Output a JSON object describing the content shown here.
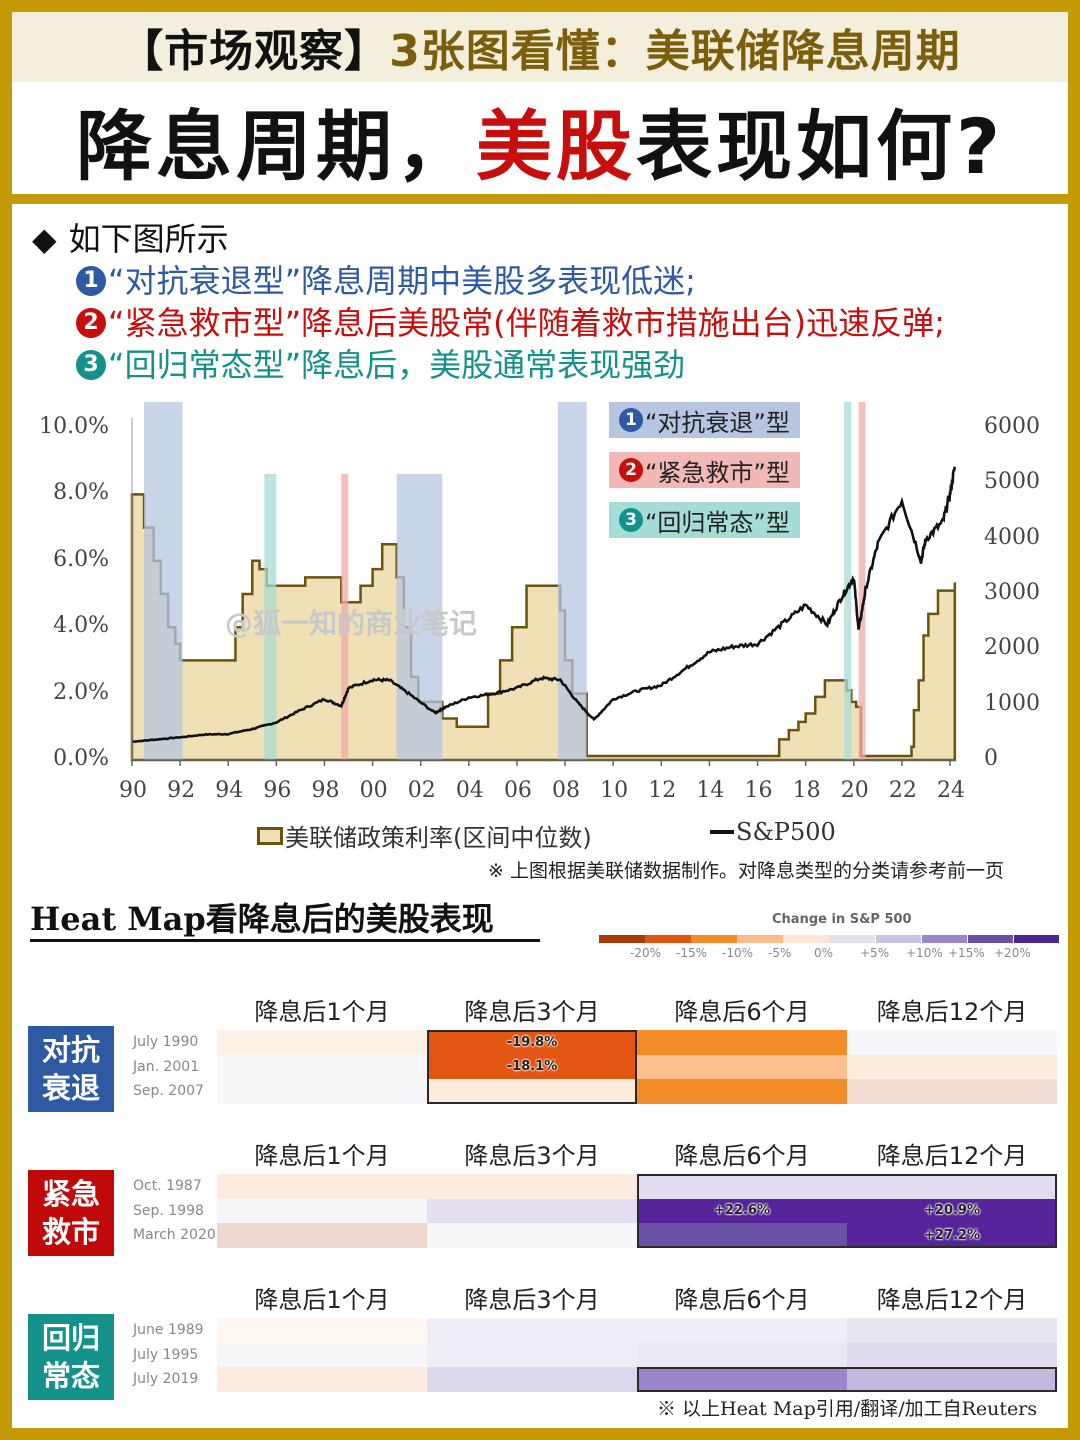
{
  "header": {
    "tag": "【市场观察】",
    "subtitle": "3张图看懂：美联储降息周期",
    "headline_a": "降息周期，",
    "headline_red": "美股",
    "headline_b": "表现如何?"
  },
  "intro": {
    "lead_bullet": "◆",
    "lead": "如下图所示",
    "items": [
      {
        "num": "1",
        "text": "“对抗衰退型”降息周期中美股多表现低迷;",
        "color": "#2d5aa3"
      },
      {
        "num": "2",
        "text": "“紧急救市型”降息后美股常(伴随着救市措施出台)迅速反弹;",
        "color": "#c80d0d"
      },
      {
        "num": "3",
        "text": "“回归常态型”降息后，美股通常表现强劲",
        "color": "#13918a"
      }
    ]
  },
  "chart_data": [
    {
      "type": "area+line",
      "title": "",
      "watermark": "@狐一知的商业笔记",
      "xlabel": "",
      "ylabel_left": "美联储政策利率",
      "ylabel_right": "S&P500",
      "x_ticks": [
        "90",
        "92",
        "94",
        "96",
        "98",
        "00",
        "02",
        "04",
        "06",
        "08",
        "10",
        "12",
        "14",
        "16",
        "18",
        "20",
        "22",
        "24"
      ],
      "y_left_ticks": [
        "0.0%",
        "2.0%",
        "4.0%",
        "6.0%",
        "8.0%",
        "10.0%"
      ],
      "y_left_range": [
        0,
        10
      ],
      "y_right_ticks": [
        "0",
        "1000",
        "2000",
        "3000",
        "4000",
        "5000",
        "6000"
      ],
      "y_right_range": [
        0,
        6000
      ],
      "legend": [
        "美联储政策利率(区间中位数)",
        "S&P500"
      ],
      "series": [
        {
          "name": "美联储政策利率(区间中位数)",
          "style": "step-area",
          "x": [
            1990.0,
            1990.5,
            1990.9,
            1991.2,
            1991.5,
            1991.8,
            1992.0,
            1992.5,
            1993.0,
            1994.0,
            1994.3,
            1994.6,
            1995.0,
            1995.3,
            1995.6,
            1996.0,
            1997.2,
            1998.0,
            1998.7,
            1999.0,
            1999.5,
            2000.0,
            2000.4,
            2001.0,
            2001.3,
            2001.6,
            2001.9,
            2002.2,
            2002.9,
            2003.5,
            2004.4,
            2004.8,
            2005.3,
            2005.8,
            2006.4,
            2007.5,
            2007.8,
            2008.0,
            2008.3,
            2008.9,
            2015.9,
            2016.9,
            2017.3,
            2017.7,
            2018.0,
            2018.4,
            2018.8,
            2019.5,
            2019.7,
            2019.9,
            2020.1,
            2020.3,
            2022.2,
            2022.4,
            2022.5,
            2022.7,
            2022.9,
            2023.1,
            2023.5,
            2024.2
          ],
          "values": [
            8.0,
            7.0,
            6.0,
            5.0,
            4.0,
            3.5,
            3.0,
            3.0,
            3.0,
            3.0,
            4.0,
            5.0,
            6.0,
            5.75,
            5.25,
            5.25,
            5.5,
            5.5,
            4.75,
            4.75,
            5.25,
            5.75,
            6.5,
            5.5,
            4.0,
            2.5,
            1.75,
            1.75,
            1.25,
            1.0,
            1.0,
            2.0,
            3.0,
            4.0,
            5.25,
            5.25,
            4.5,
            3.0,
            2.0,
            0.12,
            0.12,
            0.62,
            0.9,
            1.15,
            1.4,
            1.9,
            2.4,
            2.4,
            2.1,
            1.75,
            1.6,
            0.12,
            0.12,
            0.4,
            1.5,
            2.4,
            3.75,
            4.4,
            5.1,
            5.35
          ]
        },
        {
          "name": "S&P500",
          "style": "line",
          "x": [
            1990,
            1991,
            1992,
            1993,
            1994,
            1995,
            1996,
            1997,
            1998,
            1998.7,
            1999,
            2000,
            2000.7,
            2001.5,
            2002.6,
            2003,
            2004,
            2005,
            2006,
            2007,
            2007.8,
            2008.5,
            2009.2,
            2010,
            2011,
            2012,
            2013,
            2014,
            2015,
            2016,
            2017,
            2018,
            2018.9,
            2019.5,
            2020.0,
            2020.2,
            2020.5,
            2021,
            2022,
            2022.8,
            2023,
            2023.7,
            2024,
            2024.2
          ],
          "values": [
            330,
            370,
            410,
            460,
            470,
            560,
            680,
            900,
            1100,
            980,
            1300,
            1450,
            1440,
            1200,
            850,
            950,
            1130,
            1200,
            1300,
            1480,
            1450,
            1050,
            730,
            1100,
            1250,
            1350,
            1650,
            1950,
            2050,
            2100,
            2450,
            2800,
            2450,
            2950,
            3300,
            2350,
            3100,
            3900,
            4700,
            3600,
            4000,
            4300,
            4800,
            5300
          ]
        }
      ],
      "shaded_periods": [
        {
          "type": "对抗衰退",
          "start": 1990.5,
          "end": 1992.1,
          "color": "#b6c6e0"
        },
        {
          "type": "回归常态",
          "start": 1995.5,
          "end": 1996.0,
          "color": "#a6dcd6"
        },
        {
          "type": "紧急救市",
          "start": 1998.7,
          "end": 1998.9,
          "color": "#f1aaa8"
        },
        {
          "type": "对抗衰退",
          "start": 2001.0,
          "end": 2002.9,
          "color": "#b6c6e0"
        },
        {
          "type": "对抗衰退",
          "start": 2007.7,
          "end": 2008.9,
          "color": "#b6c6e0"
        },
        {
          "type": "回归常态",
          "start": 2019.6,
          "end": 2019.9,
          "color": "#a6dcd6"
        },
        {
          "type": "紧急救市",
          "start": 2020.2,
          "end": 2020.3,
          "color": "#f1aaa8"
        }
      ],
      "type_legend": [
        {
          "num": "1",
          "label": "“对抗衰退”型",
          "bg": "#b6c6e0",
          "numColor": "#2d5aa3"
        },
        {
          "num": "2",
          "label": "“紧急救市”型",
          "bg": "#f1b8b5",
          "numColor": "#c80d0d"
        },
        {
          "num": "3",
          "label": "“回归常态”型",
          "bg": "#a6dcd6",
          "numColor": "#13918a"
        }
      ]
    },
    {
      "type": "heatmap",
      "title": "Heat Map看降息后的美股表现",
      "scale_title": "Change in S&P 500",
      "scale_colors": [
        "#a93a0c",
        "#e05412",
        "#f28c28",
        "#fbbd88",
        "#fde6d8",
        "#e4e0ee",
        "#c9c2e1",
        "#9a86c8",
        "#6a4fa8",
        "#4c2490"
      ],
      "scale_ticks": [
        "-20%",
        "-15%",
        "-10%",
        "-5%",
        "0%",
        "+5%",
        "+10%",
        "+15%",
        "+20%"
      ],
      "columns": [
        "降息后1个月",
        "降息后3个月",
        "降息后6个月",
        "降息后12个月"
      ],
      "groups": [
        {
          "label": "对抗衰退",
          "color": "#2d5aa3",
          "rows": [
            {
              "date": "July 1990",
              "cells": [
                {
                  "c": "#fef1e6"
                },
                {
                  "c": "#e25512",
                  "v": "-19.8%"
                },
                {
                  "c": "#f28c28"
                },
                {
                  "c": "#f7f6fa"
                }
              ]
            },
            {
              "date": "Jan. 2001",
              "cells": [
                {
                  "c": "#f8f8fa"
                },
                {
                  "c": "#e25512",
                  "v": "-18.1%"
                },
                {
                  "c": "#fcc08e"
                },
                {
                  "c": "#fdebdc"
                }
              ]
            },
            {
              "date": "Sep. 2007",
              "cells": [
                {
                  "c": "#f8f8fa"
                },
                {
                  "c": "#fdebdc"
                },
                {
                  "c": "#f28c28"
                },
                {
                  "c": "#f2dcd3"
                }
              ]
            }
          ]
        },
        {
          "label": "紧急救市",
          "color": "#c00a0a",
          "rows": [
            {
              "date": "Oct. 1987",
              "cells": [
                {
                  "c": "#fdebdf"
                },
                {
                  "c": "#fdebdf"
                },
                {
                  "c": "#e1ddee"
                },
                {
                  "c": "#e1ddee"
                }
              ]
            },
            {
              "date": "Sep. 1998",
              "cells": [
                {
                  "c": "#f7f7fa"
                },
                {
                  "c": "#e3dff0"
                },
                {
                  "c": "#55249a",
                  "v": "+22.6%"
                },
                {
                  "c": "#55249a",
                  "v": "+20.9%"
                }
              ]
            },
            {
              "date": "March 2020",
              "cells": [
                {
                  "c": "#efd8d0"
                },
                {
                  "c": "#f7f7f9"
                },
                {
                  "c": "#6c52a6"
                },
                {
                  "c": "#55249a",
                  "v": "+27.2%"
                }
              ]
            }
          ]
        },
        {
          "label": "回归常态",
          "color": "#13918a",
          "rows": [
            {
              "date": "June 1989",
              "cells": [
                {
                  "c": "#fff7f1"
                },
                {
                  "c": "#efedf6"
                },
                {
                  "c": "#efedf6"
                },
                {
                  "c": "#e9e6f2"
                }
              ]
            },
            {
              "date": "July 1995",
              "cells": [
                {
                  "c": "#f7f7fa"
                },
                {
                  "c": "#efedf6"
                },
                {
                  "c": "#ebe8f3"
                },
                {
                  "c": "#e0dbec"
                }
              ]
            },
            {
              "date": "July 2019",
              "cells": [
                {
                  "c": "#fdebdf"
                },
                {
                  "c": "#ddd9ec"
                },
                {
                  "c": "#9a86c8"
                },
                {
                  "c": "#c4b8de"
                }
              ]
            }
          ]
        }
      ]
    }
  ],
  "chart_legend": {
    "fed_rate": "美联储政策利率(区间中位数)",
    "sp500": "S&P500"
  },
  "notes": {
    "chart_note": "※ 上图根据美联储数据制作。对降息类型的分类请参考前一页",
    "heatmap_note": "※ 以上Heat Map引用/翻译/加工自Reuters"
  },
  "colors": {
    "gold_frame": "#c49a08",
    "red": "#c80d0d",
    "blue": "#2d5aa3",
    "teal": "#13918a"
  }
}
